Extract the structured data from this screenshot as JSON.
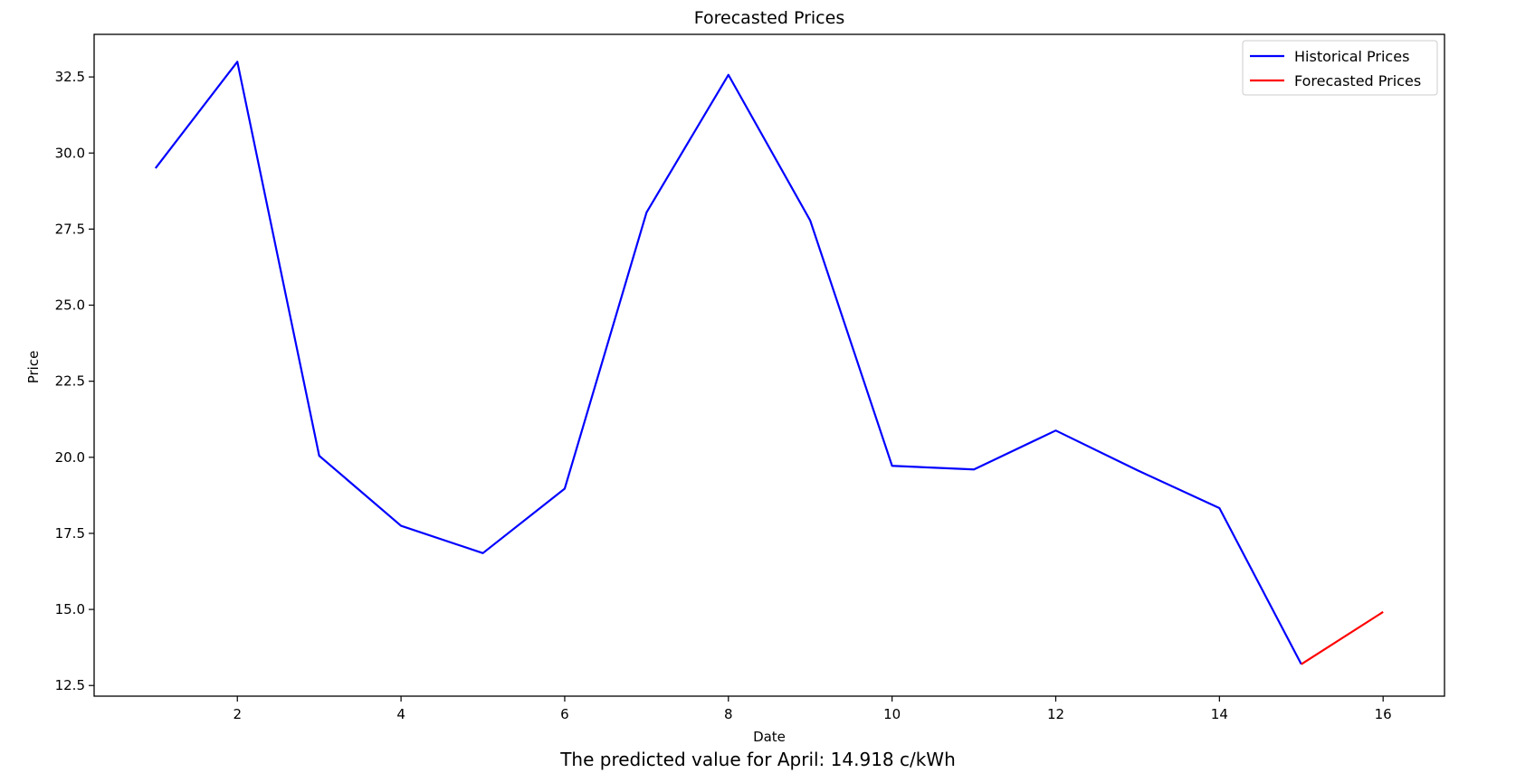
{
  "chart_data": {
    "type": "line",
    "title": "Forecasted Prices",
    "xlabel": "Date",
    "ylabel": "Price",
    "xlim": [
      0.25,
      16.75
    ],
    "ylim": [
      12.15,
      33.9
    ],
    "xticks": [
      2,
      4,
      6,
      8,
      10,
      12,
      14,
      16
    ],
    "yticks": [
      12.5,
      15.0,
      17.5,
      20.0,
      22.5,
      25.0,
      27.5,
      30.0,
      32.5
    ],
    "grid": false,
    "legend_position": "top-right",
    "series": [
      {
        "name": "Historical Prices",
        "color": "#0000ff",
        "x": [
          1,
          2,
          3,
          4,
          5,
          6,
          7,
          8,
          9,
          10,
          11,
          12,
          13,
          14,
          15
        ],
        "y": [
          29.5,
          33.0,
          20.05,
          17.75,
          16.85,
          18.97,
          28.05,
          32.57,
          27.78,
          19.72,
          19.6,
          20.88,
          19.57,
          18.33,
          13.2
        ]
      },
      {
        "name": "Forecasted Prices",
        "color": "#ff0000",
        "x": [
          15,
          16
        ],
        "y": [
          13.2,
          14.918
        ]
      }
    ]
  },
  "caption": "The predicted value for April: 14.918 c/kWh"
}
